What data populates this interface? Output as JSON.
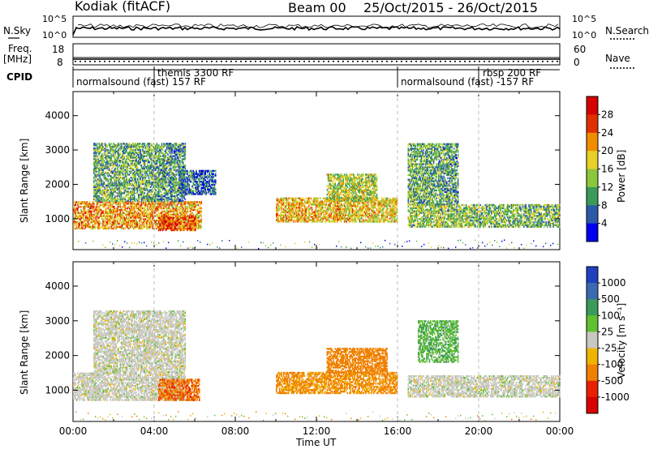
{
  "header": {
    "station": "Kodiak (fitACF)",
    "beam": "Beam 00",
    "date_range": "25/Oct/2015 - 26/Oct/2015"
  },
  "strips": {
    "nsky_label": "N.Sky",
    "nsky_ticks": [
      "10^5",
      "10^0"
    ],
    "nsearch_label": "N.Search",
    "nsearch_ticks": [
      "10^5",
      "10^0"
    ],
    "freq_label": "Freq.",
    "freq_unit": "[MHz]",
    "freq_ticks": [
      "18",
      "8"
    ],
    "nave_label": "Nave",
    "nave_ticks": [
      "60",
      "0"
    ],
    "cpid_label": "CPID",
    "cpid_segments": [
      {
        "start_h": 0,
        "label": "normalsound (fast) 157 RF"
      },
      {
        "start_h": 4,
        "label": "themis 3300 RF"
      },
      {
        "start_h": 16,
        "label": "normalsound (fast) -157 RF"
      },
      {
        "start_h": 20,
        "label": "rbsp 200 RF"
      }
    ]
  },
  "chart_data": [
    {
      "type": "heatmap",
      "title": "",
      "xlabel": "",
      "ylabel": "Slant Range [km]",
      "xlim_hours": [
        0,
        24
      ],
      "ylim": [
        100,
        4700
      ],
      "yticks": [
        "1000",
        "2000",
        "3000",
        "4000"
      ],
      "colorbar": {
        "label": "Power [dB]",
        "ticks": [
          "4",
          "8",
          "12",
          "16",
          "20",
          "24",
          "28"
        ],
        "colors": [
          "#0000ee",
          "#2c5aa8",
          "#3a9a5a",
          "#8cc63c",
          "#e8d028",
          "#f08c00",
          "#e03000",
          "#d40000"
        ]
      },
      "bands": [
        {
          "from_h": 0.0,
          "to_h": 6.3,
          "range_km": [
            700,
            1500
          ],
          "power_db": 22
        },
        {
          "from_h": 1.0,
          "to_h": 5.5,
          "range_km": [
            1500,
            3200
          ],
          "power_db": 12
        },
        {
          "from_h": 4.2,
          "to_h": 6.0,
          "range_km": [
            650,
            1100
          ],
          "power_db": 26
        },
        {
          "from_h": 5.2,
          "to_h": 7.0,
          "range_km": [
            1700,
            2400
          ],
          "power_db": 8
        },
        {
          "from_h": 10.0,
          "to_h": 16.0,
          "range_km": [
            900,
            1600
          ],
          "power_db": 20
        },
        {
          "from_h": 12.5,
          "to_h": 15.0,
          "range_km": [
            1500,
            2300
          ],
          "power_db": 16
        },
        {
          "from_h": 16.5,
          "to_h": 24.0,
          "range_km": [
            750,
            1400
          ],
          "power_db": 14
        },
        {
          "from_h": 16.5,
          "to_h": 19.0,
          "range_km": [
            1400,
            3200
          ],
          "power_db": 12
        }
      ]
    },
    {
      "type": "heatmap",
      "title": "",
      "xlabel": "Time UT",
      "ylabel": "Slant Range [km]",
      "xlim_hours": [
        0,
        24
      ],
      "ylim": [
        100,
        4700
      ],
      "yticks": [
        "1000",
        "2000",
        "3000",
        "4000"
      ],
      "xticks": [
        "00:00",
        "04:00",
        "08:00",
        "12:00",
        "16:00",
        "20:00",
        "00:00"
      ],
      "colorbar": {
        "label": "Velocity [m s⁻¹]",
        "ticks": [
          "1000",
          "500",
          "100",
          "25",
          "-25",
          "-100",
          "-500",
          "-1000"
        ],
        "colors": [
          "#2040c0",
          "#3a6ab0",
          "#3a9a5a",
          "#60c030",
          "#c8c8c0",
          "#f0b400",
          "#f08000",
          "#e82000",
          "#d80000"
        ]
      },
      "bands": [
        {
          "from_h": 0.0,
          "to_h": 5.5,
          "range_km": [
            700,
            1500
          ],
          "velocity": 0
        },
        {
          "from_h": 1.0,
          "to_h": 5.5,
          "range_km": [
            1500,
            3300
          ],
          "velocity": 0
        },
        {
          "from_h": 4.2,
          "to_h": 6.2,
          "range_km": [
            700,
            1300
          ],
          "velocity": -400
        },
        {
          "from_h": 10.0,
          "to_h": 16.0,
          "range_km": [
            900,
            1500
          ],
          "velocity": -150
        },
        {
          "from_h": 12.5,
          "to_h": 15.5,
          "range_km": [
            1500,
            2200
          ],
          "velocity": -250
        },
        {
          "from_h": 16.5,
          "to_h": 24.0,
          "range_km": [
            800,
            1400
          ],
          "velocity": 0
        },
        {
          "from_h": 17.0,
          "to_h": 19.0,
          "range_km": [
            1800,
            3000
          ],
          "velocity": 80
        }
      ]
    }
  ]
}
